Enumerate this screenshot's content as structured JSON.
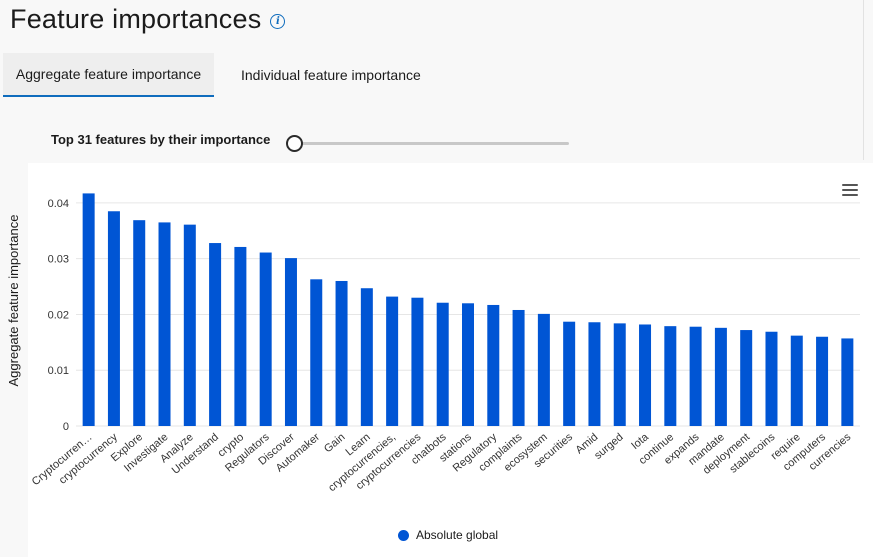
{
  "header": {
    "title": "Feature importances"
  },
  "tabs": [
    {
      "label": "Aggregate feature importance"
    },
    {
      "label": "Individual feature importance"
    }
  ],
  "slider": {
    "label": "Top 31 features by their importance",
    "value": 31
  },
  "colors": {
    "bar": "#0055d4",
    "accent": "#0f6cbd"
  },
  "chart_data": {
    "type": "bar",
    "ylabel": "Aggregate feature importance",
    "ylim": [
      0,
      0.045
    ],
    "yticks": [
      0,
      0.01,
      0.02,
      0.03,
      0.04
    ],
    "ytick_labels": [
      "0",
      "0.01",
      "0.02",
      "0.03",
      "0.04"
    ],
    "grid": true,
    "legend_position": "bottom",
    "categories": [
      "Cryptocurren…",
      "cryptocurrency",
      "Explore",
      "Investigate",
      "Analyze",
      "Understand",
      "crypto",
      "Regulators",
      "Discover",
      "Automaker",
      "Gain",
      "Learn",
      "cryptocurrencies,",
      "cryptocurrencies",
      "chatbots",
      "stations",
      "Regulatory",
      "complaints",
      "ecosystem",
      "securities",
      "Amid",
      "surged",
      "Iota",
      "continue",
      "expands",
      "mandate",
      "deployment",
      "stablecoins",
      "require",
      "computers",
      "currencies"
    ],
    "series": [
      {
        "name": "Absolute global",
        "values": [
          0.0417,
          0.0385,
          0.0369,
          0.0365,
          0.0361,
          0.0328,
          0.0321,
          0.0311,
          0.0301,
          0.0263,
          0.026,
          0.0247,
          0.0232,
          0.023,
          0.0221,
          0.022,
          0.0217,
          0.0208,
          0.0201,
          0.0187,
          0.0186,
          0.0184,
          0.0182,
          0.0179,
          0.0178,
          0.0176,
          0.0172,
          0.0169,
          0.0162,
          0.016,
          0.0157
        ]
      }
    ]
  }
}
